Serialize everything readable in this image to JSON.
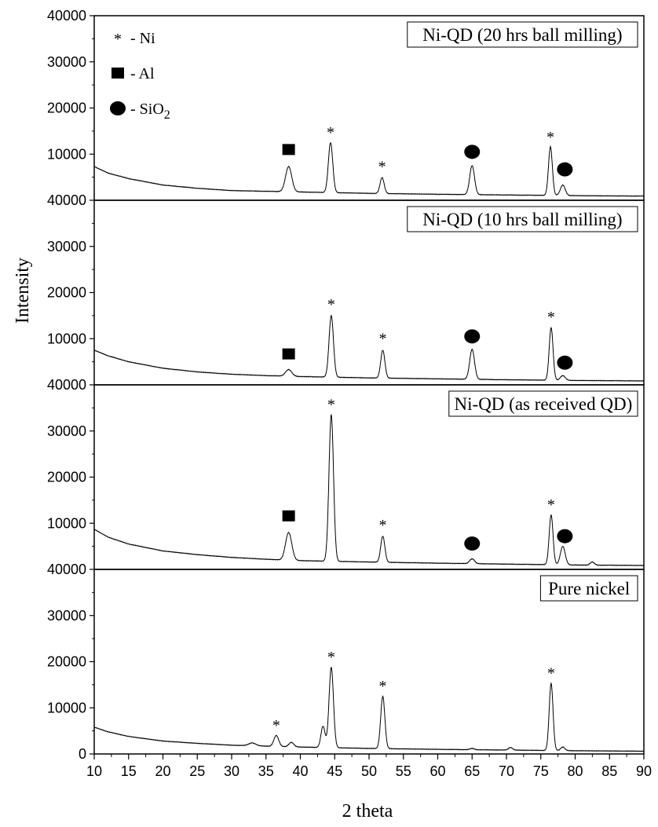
{
  "chart_data": {
    "type": "line",
    "xlabel": "2 theta",
    "ylabel": "Intensity",
    "xlim": [
      10,
      90
    ],
    "xticks": [
      10,
      15,
      20,
      25,
      30,
      35,
      40,
      45,
      50,
      55,
      60,
      65,
      70,
      75,
      80,
      85,
      90
    ],
    "ylim": [
      0,
      40000
    ],
    "yticks": [
      0,
      10000,
      20000,
      30000,
      40000
    ],
    "grid": false,
    "legend": {
      "placement": "top-left",
      "items": [
        {
          "symbol": "star",
          "label": "- Ni"
        },
        {
          "symbol": "square",
          "label": "- Al"
        },
        {
          "symbol": "circle",
          "label": "- SiO",
          "subscript": "2"
        }
      ]
    },
    "panels": [
      {
        "title": "Ni-QD (20 hrs ball milling)",
        "baseline": [
          [
            10,
            7300
          ],
          [
            12,
            5900
          ],
          [
            15,
            4700
          ],
          [
            20,
            3300
          ],
          [
            25,
            2600
          ],
          [
            30,
            2100
          ],
          [
            35,
            1950
          ],
          [
            40,
            1800
          ],
          [
            50,
            1500
          ],
          [
            60,
            1300
          ],
          [
            70,
            1150
          ],
          [
            80,
            1000
          ],
          [
            90,
            900
          ]
        ],
        "peaks": [
          {
            "x": 38.3,
            "y": 7300,
            "w": 0.45
          },
          {
            "x": 44.4,
            "y": 12500,
            "w": 0.32
          },
          {
            "x": 51.9,
            "y": 4900,
            "w": 0.3
          },
          {
            "x": 65.0,
            "y": 7500,
            "w": 0.35
          },
          {
            "x": 76.4,
            "y": 11600,
            "w": 0.28
          },
          {
            "x": 78.2,
            "y": 3300,
            "w": 0.35
          }
        ],
        "markers": [
          {
            "symbol": "square",
            "x": 38.3,
            "y": 11000
          },
          {
            "symbol": "star",
            "x": 44.4,
            "y": 15000
          },
          {
            "symbol": "star",
            "x": 51.9,
            "y": 7600
          },
          {
            "symbol": "circle",
            "x": 65.0,
            "y": 10500
          },
          {
            "symbol": "star",
            "x": 76.4,
            "y": 14000
          },
          {
            "symbol": "circle",
            "x": 78.5,
            "y": 6700
          }
        ]
      },
      {
        "title": "Ni-QD (10 hrs ball milling)",
        "baseline": [
          [
            10,
            7500
          ],
          [
            12,
            6300
          ],
          [
            15,
            5000
          ],
          [
            20,
            3600
          ],
          [
            25,
            2800
          ],
          [
            30,
            2300
          ],
          [
            35,
            2000
          ],
          [
            40,
            1800
          ],
          [
            50,
            1500
          ],
          [
            60,
            1300
          ],
          [
            70,
            1100
          ],
          [
            80,
            950
          ],
          [
            90,
            850
          ]
        ],
        "peaks": [
          {
            "x": 38.3,
            "y": 3300,
            "w": 0.45
          },
          {
            "x": 44.5,
            "y": 15000,
            "w": 0.32
          },
          {
            "x": 52.0,
            "y": 7500,
            "w": 0.3
          },
          {
            "x": 65.0,
            "y": 7700,
            "w": 0.35
          },
          {
            "x": 76.5,
            "y": 12400,
            "w": 0.28
          },
          {
            "x": 78.2,
            "y": 2000,
            "w": 0.35
          }
        ],
        "markers": [
          {
            "symbol": "square",
            "x": 38.3,
            "y": 6700
          },
          {
            "symbol": "star",
            "x": 44.5,
            "y": 17700
          },
          {
            "symbol": "star",
            "x": 52.0,
            "y": 10300
          },
          {
            "symbol": "circle",
            "x": 65.0,
            "y": 10500
          },
          {
            "symbol": "star",
            "x": 76.5,
            "y": 15000
          },
          {
            "symbol": "circle",
            "x": 78.5,
            "y": 4800
          }
        ]
      },
      {
        "title": "Ni-QD (as received QD)",
        "baseline": [
          [
            10,
            8700
          ],
          [
            12,
            7000
          ],
          [
            15,
            5500
          ],
          [
            20,
            4000
          ],
          [
            25,
            3200
          ],
          [
            30,
            2600
          ],
          [
            35,
            2200
          ],
          [
            40,
            1900
          ],
          [
            50,
            1600
          ],
          [
            60,
            1350
          ],
          [
            70,
            1150
          ],
          [
            80,
            950
          ],
          [
            90,
            850
          ]
        ],
        "peaks": [
          {
            "x": 38.3,
            "y": 8000,
            "w": 0.45
          },
          {
            "x": 44.5,
            "y": 33500,
            "w": 0.33
          },
          {
            "x": 52.0,
            "y": 7200,
            "w": 0.3
          },
          {
            "x": 65.0,
            "y": 2300,
            "w": 0.35
          },
          {
            "x": 76.5,
            "y": 11800,
            "w": 0.28
          },
          {
            "x": 78.2,
            "y": 5000,
            "w": 0.35
          },
          {
            "x": 82.5,
            "y": 1600,
            "w": 0.3
          }
        ],
        "markers": [
          {
            "symbol": "square",
            "x": 38.3,
            "y": 11600
          },
          {
            "symbol": "star",
            "x": 44.5,
            "y": 36000
          },
          {
            "symbol": "star",
            "x": 52.0,
            "y": 9900
          },
          {
            "symbol": "circle",
            "x": 65.0,
            "y": 5600
          },
          {
            "symbol": "star",
            "x": 76.5,
            "y": 14300
          },
          {
            "symbol": "circle",
            "x": 78.5,
            "y": 7200
          }
        ]
      },
      {
        "title": "Pure nickel",
        "baseline": [
          [
            10,
            5800
          ],
          [
            12,
            4800
          ],
          [
            15,
            3800
          ],
          [
            20,
            2800
          ],
          [
            25,
            2300
          ],
          [
            30,
            1900
          ],
          [
            35,
            1700
          ],
          [
            40,
            1500
          ],
          [
            50,
            1200
          ],
          [
            60,
            1000
          ],
          [
            70,
            850
          ],
          [
            80,
            700
          ],
          [
            90,
            600
          ]
        ],
        "peaks": [
          {
            "x": 33.0,
            "y": 2400,
            "w": 0.5
          },
          {
            "x": 36.5,
            "y": 4000,
            "w": 0.35
          },
          {
            "x": 38.7,
            "y": 2500,
            "w": 0.35
          },
          {
            "x": 43.3,
            "y": 6000,
            "w": 0.3
          },
          {
            "x": 44.5,
            "y": 18800,
            "w": 0.32
          },
          {
            "x": 52.0,
            "y": 12500,
            "w": 0.3
          },
          {
            "x": 65.0,
            "y": 1200,
            "w": 0.3
          },
          {
            "x": 70.6,
            "y": 1400,
            "w": 0.3
          },
          {
            "x": 76.5,
            "y": 15300,
            "w": 0.28
          },
          {
            "x": 78.2,
            "y": 1500,
            "w": 0.3
          }
        ],
        "markers": [
          {
            "symbol": "star",
            "x": 36.5,
            "y": 6500
          },
          {
            "symbol": "star",
            "x": 44.5,
            "y": 21300
          },
          {
            "symbol": "star",
            "x": 52.0,
            "y": 15000
          },
          {
            "symbol": "star",
            "x": 76.5,
            "y": 17800
          }
        ]
      }
    ]
  }
}
